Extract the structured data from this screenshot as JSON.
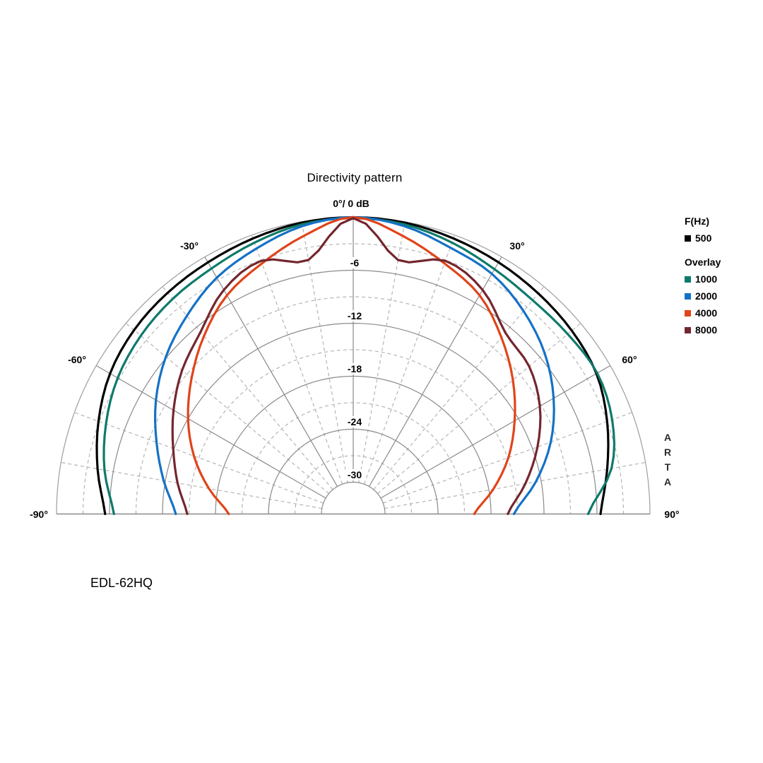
{
  "title": "Directivity pattern",
  "model": "EDL-62HQ",
  "watermark": "ARTA",
  "apex_label": "0°/ 0 dB",
  "legend": {
    "primary_header": "F(Hz)",
    "primary": [
      {
        "label": "500",
        "color": "#000000"
      }
    ],
    "overlay_header": "Overlay",
    "overlay": [
      {
        "label": "1000",
        "color": "#0e7a6a"
      },
      {
        "label": "2000",
        "color": "#1571c6"
      },
      {
        "label": "4000",
        "color": "#e0441a"
      },
      {
        "label": "8000",
        "color": "#74262e"
      }
    ]
  },
  "chart_data": {
    "type": "polar-directivity",
    "title": "Directivity pattern",
    "units": {
      "angle": "deg",
      "magnitude": "dB"
    },
    "angle_range": [
      -90,
      90
    ],
    "radial_range": [
      0,
      -30
    ],
    "grid": {
      "solid_rings_db": [
        0,
        -6,
        -12,
        -18,
        -24,
        -30
      ],
      "dashed_rings_db": [
        -3,
        -9,
        -15,
        -21,
        -27
      ],
      "solid_spokes_deg": [
        -60,
        -30,
        0,
        30,
        60
      ],
      "dashed_spokes_deg": [
        -80,
        -70,
        -50,
        -40,
        -20,
        -10,
        10,
        20,
        40,
        50,
        70,
        80
      ]
    },
    "radial_tick_labels": [
      {
        "db": -6,
        "text": "-6"
      },
      {
        "db": -12,
        "text": "-12"
      },
      {
        "db": -18,
        "text": "-18"
      },
      {
        "db": -24,
        "text": "-24"
      },
      {
        "db": -30,
        "text": "-30"
      }
    ],
    "angle_labels": [
      {
        "angle": -90,
        "text": "-90°"
      },
      {
        "angle": -60,
        "text": "-60°"
      },
      {
        "angle": -30,
        "text": "-30°"
      },
      {
        "angle": 30,
        "text": "30°"
      },
      {
        "angle": 60,
        "text": "60°"
      },
      {
        "angle": 90,
        "text": "90°"
      }
    ],
    "angles_deg": [
      -90,
      -80,
      -70,
      -60,
      -50,
      -40,
      -30,
      -20,
      -10,
      0,
      10,
      20,
      30,
      40,
      50,
      60,
      70,
      80,
      90
    ],
    "series": [
      {
        "name": "500",
        "color": "#000000",
        "values_db": [
          -5.5,
          -4.2,
          -2.9,
          -1.8,
          -1.2,
          -0.9,
          -0.7,
          -0.4,
          -0.1,
          0,
          -0.1,
          -0.4,
          -0.7,
          -1.0,
          -1.3,
          -1.8,
          -3.0,
          -4.4,
          -5.6
        ]
      },
      {
        "name": "1000",
        "color": "#0e7a6a",
        "values_db": [
          -6.5,
          -5.0,
          -3.8,
          -2.8,
          -2.2,
          -1.8,
          -1.5,
          -0.9,
          -0.3,
          -0.1,
          -0.3,
          -0.9,
          -1.6,
          -2.0,
          -1.9,
          -1.7,
          -2.4,
          -3.9,
          -7.0
        ]
      },
      {
        "name": "2000",
        "color": "#1571c6",
        "values_db": [
          -13.5,
          -11.8,
          -9.9,
          -7.8,
          -5.9,
          -4.3,
          -2.7,
          -1.6,
          -0.5,
          0,
          -0.5,
          -1.5,
          -2.2,
          -3.6,
          -5.3,
          -7.4,
          -9.8,
          -12.6,
          -15.4
        ]
      },
      {
        "name": "4000",
        "color": "#e0441a",
        "values_db": [
          -19.5,
          -17.0,
          -14.4,
          -12.0,
          -9.7,
          -7.3,
          -5.0,
          -3.4,
          -1.6,
          0,
          -1.6,
          -3.4,
          -5.0,
          -7.5,
          -10.0,
          -12.5,
          -14.9,
          -17.5,
          -19.9
        ]
      },
      {
        "name": "8000",
        "color": "#74262e",
        "values_db": [
          -14.8,
          -13.4,
          -11.9,
          -10.1,
          -8.3,
          -6.7,
          -4.3,
          -3.1,
          -4.4,
          -0.1,
          -4.4,
          -3.1,
          -4.3,
          -6.8,
          -7.6,
          -9.2,
          -11.4,
          -13.8,
          -16.1
        ]
      }
    ],
    "legend_position": "right"
  }
}
